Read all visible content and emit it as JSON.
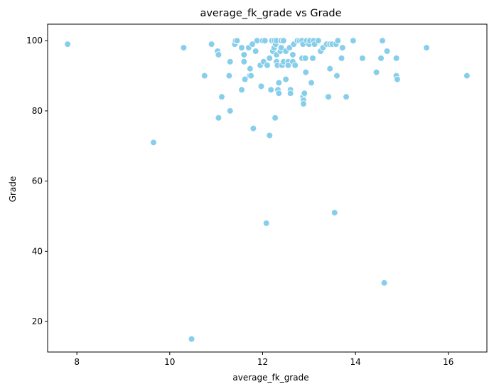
{
  "chart_data": {
    "type": "scatter",
    "title": "average_fk_grade vs Grade",
    "xlabel": "average_fk_grade",
    "ylabel": "Grade",
    "xlim": [
      7.37,
      16.83
    ],
    "ylim": [
      11.3,
      104.7
    ],
    "xticks": [
      8,
      10,
      12,
      14,
      16
    ],
    "yticks": [
      20,
      40,
      60,
      80,
      100
    ],
    "grid": false,
    "marker_color": "#87CEEB",
    "marker_edge_color": "#ffffff",
    "points": [
      [
        7.8,
        99
      ],
      [
        9.65,
        71
      ],
      [
        10.3,
        98
      ],
      [
        10.47,
        15
      ],
      [
        10.75,
        90
      ],
      [
        10.9,
        99
      ],
      [
        11.03,
        97
      ],
      [
        11.05,
        96
      ],
      [
        11.05,
        78
      ],
      [
        11.12,
        84
      ],
      [
        11.28,
        90
      ],
      [
        11.3,
        94
      ],
      [
        11.3,
        80
      ],
      [
        11.4,
        99
      ],
      [
        11.42,
        100
      ],
      [
        11.45,
        100
      ],
      [
        11.55,
        98
      ],
      [
        11.55,
        86
      ],
      [
        11.6,
        96
      ],
      [
        11.6,
        94
      ],
      [
        11.62,
        89
      ],
      [
        11.7,
        98
      ],
      [
        11.72,
        90
      ],
      [
        11.73,
        92
      ],
      [
        11.75,
        90
      ],
      [
        11.78,
        99
      ],
      [
        11.8,
        75
      ],
      [
        11.85,
        97
      ],
      [
        11.88,
        100
      ],
      [
        11.95,
        93
      ],
      [
        11.97,
        87
      ],
      [
        12.0,
        100
      ],
      [
        12.02,
        94
      ],
      [
        12.05,
        100
      ],
      [
        12.08,
        48
      ],
      [
        12.1,
        93
      ],
      [
        12.15,
        73
      ],
      [
        12.15,
        95
      ],
      [
        12.18,
        86
      ],
      [
        12.2,
        100
      ],
      [
        12.22,
        97
      ],
      [
        12.25,
        100
      ],
      [
        12.25,
        98
      ],
      [
        12.27,
        78
      ],
      [
        12.28,
        99
      ],
      [
        12.3,
        100
      ],
      [
        12.3,
        96
      ],
      [
        12.3,
        94
      ],
      [
        12.32,
        93
      ],
      [
        12.33,
        86
      ],
      [
        12.35,
        88
      ],
      [
        12.35,
        85
      ],
      [
        12.38,
        97
      ],
      [
        12.4,
        100
      ],
      [
        12.4,
        98
      ],
      [
        12.42,
        93
      ],
      [
        12.45,
        94
      ],
      [
        12.45,
        100
      ],
      [
        12.5,
        97
      ],
      [
        12.5,
        89
      ],
      [
        12.55,
        94
      ],
      [
        12.55,
        93
      ],
      [
        12.58,
        98
      ],
      [
        12.6,
        86
      ],
      [
        12.6,
        85
      ],
      [
        12.65,
        96
      ],
      [
        12.65,
        94
      ],
      [
        12.67,
        99
      ],
      [
        12.7,
        93
      ],
      [
        12.75,
        100
      ],
      [
        12.8,
        100
      ],
      [
        12.85,
        95
      ],
      [
        12.85,
        100
      ],
      [
        12.87,
        99
      ],
      [
        12.87,
        84
      ],
      [
        12.88,
        83
      ],
      [
        12.88,
        82
      ],
      [
        12.9,
        85
      ],
      [
        12.92,
        95
      ],
      [
        12.93,
        91
      ],
      [
        12.95,
        100
      ],
      [
        13.0,
        99
      ],
      [
        13.02,
        100
      ],
      [
        13.05,
        88
      ],
      [
        13.08,
        95
      ],
      [
        13.1,
        100
      ],
      [
        13.12,
        99
      ],
      [
        13.2,
        100
      ],
      [
        13.25,
        97
      ],
      [
        13.3,
        98
      ],
      [
        13.38,
        99
      ],
      [
        13.4,
        84
      ],
      [
        13.42,
        84
      ],
      [
        13.45,
        92
      ],
      [
        13.45,
        99
      ],
      [
        13.5,
        99
      ],
      [
        13.55,
        51
      ],
      [
        13.58,
        99
      ],
      [
        13.6,
        90
      ],
      [
        13.62,
        100
      ],
      [
        13.7,
        95
      ],
      [
        13.72,
        98
      ],
      [
        13.8,
        84
      ],
      [
        13.95,
        100
      ],
      [
        14.15,
        95
      ],
      [
        14.45,
        91
      ],
      [
        14.55,
        95
      ],
      [
        14.58,
        100
      ],
      [
        14.62,
        31
      ],
      [
        14.68,
        97
      ],
      [
        14.88,
        95
      ],
      [
        14.88,
        90
      ],
      [
        14.9,
        89
      ],
      [
        15.53,
        98
      ],
      [
        16.4,
        90
      ]
    ]
  }
}
